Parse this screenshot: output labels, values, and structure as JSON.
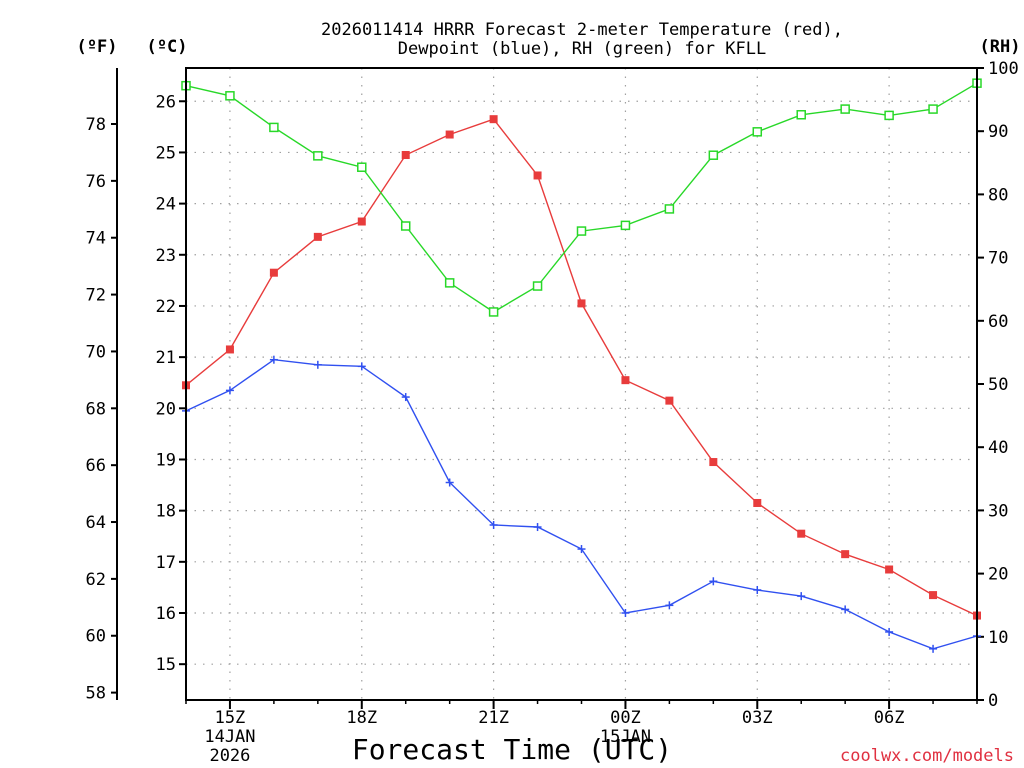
{
  "chart_data": {
    "type": "line",
    "title_line1": "2026011414 HRRR Forecast 2-meter Temperature (red),",
    "title_line2": "Dewpoint (blue), RH (green) for KFLL",
    "xlabel": "Forecast Time (UTC)",
    "credit": "coolwx.com/models",
    "units": {
      "fahrenheit": "(ºF)",
      "celsius": "(ºC)",
      "rh": "(RH)"
    },
    "x_hours": [
      14,
      15,
      16,
      17,
      18,
      19,
      20,
      21,
      22,
      23,
      24,
      25,
      26,
      27,
      28,
      29,
      30,
      31,
      32
    ],
    "xlim": [
      14,
      32
    ],
    "x_ticks": [
      {
        "hour": 15,
        "label": "15Z",
        "sub1": "14JAN",
        "sub2": "2026"
      },
      {
        "hour": 18,
        "label": "18Z",
        "sub1": "",
        "sub2": ""
      },
      {
        "hour": 21,
        "label": "21Z",
        "sub1": "",
        "sub2": ""
      },
      {
        "hour": 24,
        "label": "00Z",
        "sub1": "15JAN",
        "sub2": ""
      },
      {
        "hour": 27,
        "label": "03Z",
        "sub1": "",
        "sub2": ""
      },
      {
        "hour": 30,
        "label": "06Z",
        "sub1": "",
        "sub2": ""
      }
    ],
    "celsius_axis": {
      "min": 14.3,
      "max": 26.65,
      "ticks": [
        "15",
        "16",
        "17",
        "18",
        "19",
        "20",
        "21",
        "22",
        "23",
        "24",
        "25",
        "26"
      ]
    },
    "fahrenheit_ticks": [
      "58",
      "60",
      "62",
      "64",
      "66",
      "68",
      "70",
      "72",
      "74",
      "76",
      "78"
    ],
    "rh_axis": {
      "min": 0,
      "max": 100,
      "ticks": [
        "0",
        "10",
        "20",
        "30",
        "40",
        "50",
        "60",
        "70",
        "80",
        "90",
        "100"
      ]
    },
    "series": [
      {
        "name": "Temperature",
        "unit": "C",
        "axis": "celsius",
        "color": "#e83c3c",
        "marker": "filled-square",
        "values": [
          20.45,
          21.15,
          22.65,
          23.35,
          23.65,
          24.95,
          25.35,
          25.65,
          24.55,
          22.05,
          20.55,
          20.15,
          18.95,
          18.15,
          17.55,
          17.15,
          16.85,
          16.35,
          15.95
        ]
      },
      {
        "name": "Dewpoint",
        "unit": "C",
        "axis": "celsius",
        "color": "#3050f0",
        "marker": "plus",
        "values": [
          19.95,
          20.35,
          20.95,
          20.85,
          20.82,
          20.22,
          18.55,
          17.72,
          17.68,
          17.25,
          16.0,
          16.15,
          16.62,
          16.45,
          16.33,
          16.07,
          15.63,
          15.3,
          15.55
        ]
      },
      {
        "name": "RH",
        "unit": "%",
        "axis": "rh",
        "color": "#28d828",
        "marker": "open-square",
        "values": [
          97.2,
          95.6,
          90.6,
          86.1,
          84.3,
          75.0,
          66.0,
          61.4,
          65.5,
          74.2,
          75.1,
          77.7,
          86.2,
          89.9,
          92.6,
          93.5,
          92.5,
          93.5,
          97.6
        ]
      }
    ]
  }
}
